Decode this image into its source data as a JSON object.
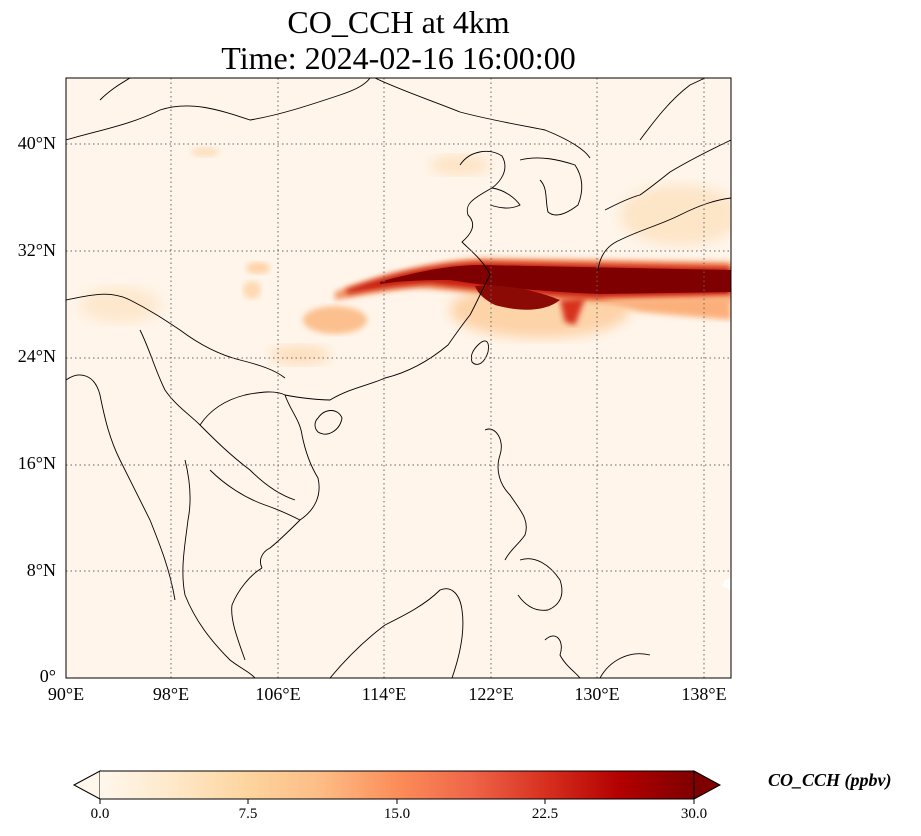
{
  "title_line1": "CO_CCH at 4km",
  "title_line2": "Time: 2024-02-16 16:00:00",
  "map": {
    "lon_range": [
      90,
      140
    ],
    "lat_range": [
      0,
      45
    ],
    "lat_ticks": [
      {
        "value": 0,
        "label": "0°"
      },
      {
        "value": 8,
        "label": "8°N"
      },
      {
        "value": 16,
        "label": "16°N"
      },
      {
        "value": 24,
        "label": "24°N"
      },
      {
        "value": 32,
        "label": "32°N"
      },
      {
        "value": 40,
        "label": "40°N"
      }
    ],
    "lon_ticks": [
      {
        "value": 90,
        "label": "90°E"
      },
      {
        "value": 98,
        "label": "98°E"
      },
      {
        "value": 106,
        "label": "106°E"
      },
      {
        "value": 114,
        "label": "114°E"
      },
      {
        "value": 122,
        "label": "122°E"
      },
      {
        "value": 130,
        "label": "130°E"
      },
      {
        "value": 138,
        "label": "138°E"
      }
    ],
    "gridlines": "dotted",
    "background_color": "#fff5ea",
    "coastline_color": "#000000"
  },
  "colorbar": {
    "label": "CO_CCH (ppbv)",
    "colormap": "OrRd",
    "min": 0.0,
    "max": 30.0,
    "extend": "both",
    "ticks": [
      "0.0",
      "7.5",
      "15.0",
      "22.5",
      "30.0"
    ],
    "colors": [
      "#fff7ec",
      "#fee8c8",
      "#fdd49e",
      "#fdbb84",
      "#fc8d59",
      "#ef6548",
      "#d7301f",
      "#b30000",
      "#7f0000"
    ]
  }
}
